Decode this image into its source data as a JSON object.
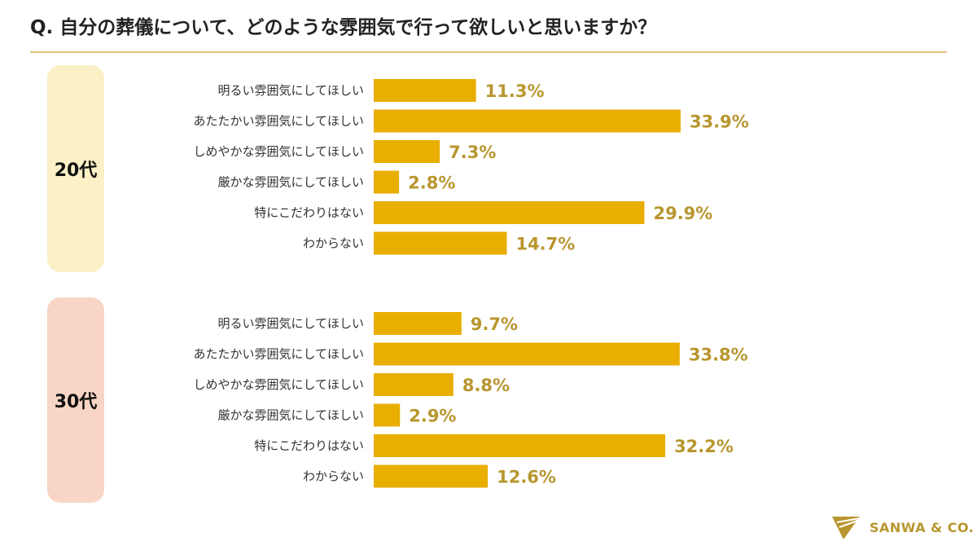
{
  "title": "Q. 自分の葬儀について、どのような雰囲気で行って欲しいと思いますか？",
  "brand": "SANWA & CO.",
  "colors": {
    "bar": "#E8AE00",
    "value_text": "#B8962E",
    "group_20": "#FBF0C6",
    "group_30": "#F8D5C4",
    "rule": "#D9C27A"
  },
  "chart_data": {
    "type": "bar",
    "orientation": "horizontal",
    "unit": "%",
    "categories": [
      "明るい雰囲気にしてほしい",
      "あたたかい雰囲気にしてほしい",
      "しめやかな雰囲気にしてほしい",
      "厳かな雰囲気にしてほしい",
      "特にこだわりはない",
      "わからない"
    ],
    "groups": [
      {
        "name": "20代",
        "values": [
          11.3,
          33.9,
          7.3,
          2.8,
          29.9,
          14.7
        ]
      },
      {
        "name": "30代",
        "values": [
          9.7,
          33.8,
          8.8,
          2.9,
          32.2,
          12.6
        ]
      }
    ]
  }
}
